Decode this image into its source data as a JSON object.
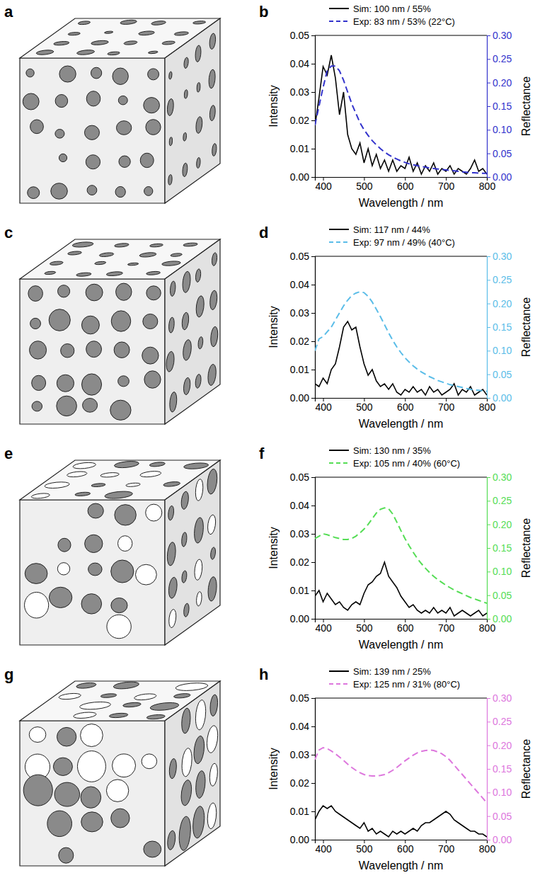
{
  "chart_data": [
    {
      "type": "line",
      "image_label": "a",
      "panel_label": "b",
      "x_label": "Wavelength / nm",
      "y_label": "Intensity",
      "y2_label": "Reflectance",
      "legend": "top",
      "x": [
        380,
        390,
        400,
        410,
        420,
        430,
        440,
        450,
        460,
        470,
        480,
        490,
        500,
        510,
        520,
        530,
        540,
        550,
        560,
        570,
        580,
        590,
        600,
        610,
        620,
        630,
        640,
        650,
        660,
        670,
        680,
        690,
        700,
        710,
        720,
        730,
        740,
        750,
        760,
        770,
        780,
        790,
        800
      ],
      "xlim": [
        380,
        800
      ],
      "xticks": [
        400,
        500,
        600,
        700,
        800
      ],
      "ylim": [
        0,
        0.05
      ],
      "yticks": [
        {
          "value": 0,
          "label": "0.00"
        },
        {
          "value": 0.01,
          "label": "0.01"
        },
        {
          "value": 0.02,
          "label": "0.02"
        },
        {
          "value": 0.03,
          "label": "0.03"
        },
        {
          "value": 0.04,
          "label": "0.04"
        },
        {
          "value": 0.05,
          "label": "0.05"
        }
      ],
      "y2lim": [
        0,
        0.3
      ],
      "y2ticks": [
        {
          "value": 0,
          "label": "0.00"
        },
        {
          "value": 0.05,
          "label": "0.05"
        },
        {
          "value": 0.1,
          "label": "0.10"
        },
        {
          "value": 0.15,
          "label": "0.15"
        },
        {
          "value": 0.2,
          "label": "0.20"
        },
        {
          "value": 0.25,
          "label": "0.25"
        },
        {
          "value": 0.3,
          "label": "0.30"
        }
      ],
      "series": [
        {
          "name": "Sim: 100 nm / 55%",
          "color": "#000000",
          "line_style": "solid",
          "values": [
            0.018,
            0.028,
            0.039,
            0.036,
            0.043,
            0.035,
            0.022,
            0.03,
            0.015,
            0.01,
            0.008,
            0.012,
            0.005,
            0.01,
            0.004,
            0.008,
            0.003,
            0.006,
            0.002,
            0.006,
            0.002,
            0.004,
            0.003,
            0.007,
            0.002,
            0.005,
            0.001,
            0.004,
            0.002,
            0.005,
            0.001,
            0.003,
            0.002,
            0.004,
            0.001,
            0.003,
            0.002,
            0.001,
            0.003,
            0.006,
            0.002,
            0.003,
            0.001
          ]
        },
        {
          "name": "Exp: 83 nm / 53% (22°C)",
          "color": "#3333cc",
          "line_style": "dashed",
          "axis": "y2",
          "values": [
            0.11,
            0.15,
            0.19,
            0.225,
            0.235,
            0.235,
            0.225,
            0.205,
            0.18,
            0.155,
            0.135,
            0.115,
            0.1,
            0.088,
            0.077,
            0.068,
            0.06,
            0.053,
            0.047,
            0.042,
            0.038,
            0.034,
            0.031,
            0.028,
            0.026,
            0.024,
            0.022,
            0.021,
            0.019,
            0.018,
            0.017,
            0.016,
            0.015,
            0.014,
            0.013,
            0.012,
            0.011,
            0.01,
            0.009,
            0.009,
            0.008,
            0.008,
            0.008
          ]
        }
      ]
    },
    {
      "type": "line",
      "image_label": "c",
      "panel_label": "d",
      "x_label": "Wavelength / nm",
      "y_label": "Intensity",
      "y2_label": "Reflectance",
      "legend": "top",
      "x": [
        380,
        390,
        400,
        410,
        420,
        430,
        440,
        450,
        460,
        470,
        480,
        490,
        500,
        510,
        520,
        530,
        540,
        550,
        560,
        570,
        580,
        590,
        600,
        610,
        620,
        630,
        640,
        650,
        660,
        670,
        680,
        690,
        700,
        710,
        720,
        730,
        740,
        750,
        760,
        770,
        780,
        790,
        800
      ],
      "xlim": [
        380,
        800
      ],
      "xticks": [
        400,
        500,
        600,
        700,
        800
      ],
      "ylim": [
        0,
        0.05
      ],
      "yticks": [
        {
          "value": 0,
          "label": "0.00"
        },
        {
          "value": 0.01,
          "label": "0.01"
        },
        {
          "value": 0.02,
          "label": "0.02"
        },
        {
          "value": 0.03,
          "label": "0.03"
        },
        {
          "value": 0.04,
          "label": "0.04"
        },
        {
          "value": 0.05,
          "label": "0.05"
        }
      ],
      "y2lim": [
        0,
        0.3
      ],
      "y2ticks": [
        {
          "value": 0,
          "label": "0.00"
        },
        {
          "value": 0.05,
          "label": "0.05"
        },
        {
          "value": 0.1,
          "label": "0.10"
        },
        {
          "value": 0.15,
          "label": "0.15"
        },
        {
          "value": 0.2,
          "label": "0.20"
        },
        {
          "value": 0.25,
          "label": "0.25"
        },
        {
          "value": 0.3,
          "label": "0.30"
        }
      ],
      "series": [
        {
          "name": "Sim: 117 nm / 44%",
          "color": "#000000",
          "line_style": "solid",
          "values": [
            0.005,
            0.004,
            0.007,
            0.005,
            0.01,
            0.012,
            0.018,
            0.025,
            0.027,
            0.024,
            0.025,
            0.018,
            0.012,
            0.008,
            0.01,
            0.006,
            0.004,
            0.005,
            0.003,
            0.005,
            0.002,
            0.001,
            0.003,
            0.002,
            0.004,
            0.002,
            0.003,
            0.001,
            0.004,
            0.002,
            0.003,
            0.001,
            0.002,
            0.003,
            0.005,
            0.001,
            0.003,
            0.002,
            0.004,
            0.001,
            0.002,
            0.003,
            0.001
          ]
        },
        {
          "name": "Exp: 97 nm / 49% (40°C)",
          "color": "#5bbde8",
          "line_style": "dashed",
          "axis": "y2",
          "values": [
            0.1,
            0.125,
            0.13,
            0.14,
            0.15,
            0.165,
            0.18,
            0.195,
            0.207,
            0.217,
            0.222,
            0.225,
            0.223,
            0.215,
            0.203,
            0.188,
            0.172,
            0.155,
            0.138,
            0.122,
            0.108,
            0.096,
            0.085,
            0.076,
            0.068,
            0.061,
            0.055,
            0.05,
            0.045,
            0.041,
            0.037,
            0.034,
            0.031,
            0.028,
            0.026,
            0.024,
            0.022,
            0.02,
            0.018,
            0.017,
            0.016,
            0.015,
            0.014
          ]
        }
      ]
    },
    {
      "type": "line",
      "image_label": "e",
      "panel_label": "f",
      "x_label": "Wavelength / nm",
      "y_label": "Intensity",
      "y2_label": "Reflectance",
      "legend": "top",
      "x": [
        380,
        390,
        400,
        410,
        420,
        430,
        440,
        450,
        460,
        470,
        480,
        490,
        500,
        510,
        520,
        530,
        540,
        550,
        560,
        570,
        580,
        590,
        600,
        610,
        620,
        630,
        640,
        650,
        660,
        670,
        680,
        690,
        700,
        710,
        720,
        730,
        740,
        750,
        760,
        770,
        780,
        790,
        800
      ],
      "xlim": [
        380,
        800
      ],
      "xticks": [
        400,
        500,
        600,
        700,
        800
      ],
      "ylim": [
        0,
        0.05
      ],
      "yticks": [
        {
          "value": 0,
          "label": "0.00"
        },
        {
          "value": 0.01,
          "label": "0.01"
        },
        {
          "value": 0.02,
          "label": "0.02"
        },
        {
          "value": 0.03,
          "label": "0.03"
        },
        {
          "value": 0.04,
          "label": "0.04"
        },
        {
          "value": 0.05,
          "label": "0.05"
        }
      ],
      "y2lim": [
        0,
        0.3
      ],
      "y2ticks": [
        {
          "value": 0,
          "label": "0.00"
        },
        {
          "value": 0.05,
          "label": "0.05"
        },
        {
          "value": 0.1,
          "label": "0.10"
        },
        {
          "value": 0.15,
          "label": "0.15"
        },
        {
          "value": 0.2,
          "label": "0.20"
        },
        {
          "value": 0.25,
          "label": "0.25"
        },
        {
          "value": 0.3,
          "label": "0.30"
        }
      ],
      "series": [
        {
          "name": "Sim: 130 nm / 35%",
          "color": "#000000",
          "line_style": "solid",
          "values": [
            0.008,
            0.01,
            0.006,
            0.009,
            0.007,
            0.005,
            0.006,
            0.004,
            0.003,
            0.005,
            0.006,
            0.005,
            0.009,
            0.012,
            0.013,
            0.015,
            0.016,
            0.02,
            0.015,
            0.013,
            0.011,
            0.008,
            0.006,
            0.004,
            0.005,
            0.003,
            0.002,
            0.003,
            0.002,
            0.004,
            0.002,
            0.003,
            0.002,
            0.004,
            0.001,
            0.002,
            0.003,
            0.002,
            0.001,
            0.002,
            0.003,
            0.001,
            0.002
          ]
        },
        {
          "name": "Exp: 105 nm / 40% (60°C)",
          "color": "#55dd55",
          "line_style": "dashed",
          "axis": "y2",
          "values": [
            0.17,
            0.175,
            0.18,
            0.178,
            0.175,
            0.172,
            0.17,
            0.168,
            0.168,
            0.17,
            0.175,
            0.182,
            0.19,
            0.2,
            0.212,
            0.224,
            0.232,
            0.235,
            0.233,
            0.222,
            0.205,
            0.187,
            0.17,
            0.155,
            0.141,
            0.128,
            0.117,
            0.107,
            0.098,
            0.09,
            0.083,
            0.077,
            0.071,
            0.066,
            0.061,
            0.057,
            0.053,
            0.049,
            0.045,
            0.042,
            0.039,
            0.036,
            0.033
          ]
        }
      ]
    },
    {
      "type": "line",
      "image_label": "g",
      "panel_label": "h",
      "x_label": "Wavelength / nm",
      "y_label": "Intensity",
      "y2_label": "Reflectance",
      "legend": "top",
      "x": [
        380,
        390,
        400,
        410,
        420,
        430,
        440,
        450,
        460,
        470,
        480,
        490,
        500,
        510,
        520,
        530,
        540,
        550,
        560,
        570,
        580,
        590,
        600,
        610,
        620,
        630,
        640,
        650,
        660,
        670,
        680,
        690,
        700,
        710,
        720,
        730,
        740,
        750,
        760,
        770,
        780,
        790,
        800
      ],
      "xlim": [
        380,
        800
      ],
      "xticks": [
        400,
        500,
        600,
        700,
        800
      ],
      "ylim": [
        0,
        0.05
      ],
      "yticks": [
        {
          "value": 0,
          "label": "0.00"
        },
        {
          "value": 0.01,
          "label": "0.01"
        },
        {
          "value": 0.02,
          "label": "0.02"
        },
        {
          "value": 0.03,
          "label": "0.03"
        },
        {
          "value": 0.04,
          "label": "0.04"
        },
        {
          "value": 0.05,
          "label": "0.05"
        }
      ],
      "y2lim": [
        0,
        0.3
      ],
      "y2ticks": [
        {
          "value": 0,
          "label": "0.00"
        },
        {
          "value": 0.05,
          "label": "0.05"
        },
        {
          "value": 0.1,
          "label": "0.10"
        },
        {
          "value": 0.15,
          "label": "0.15"
        },
        {
          "value": 0.2,
          "label": "0.20"
        },
        {
          "value": 0.25,
          "label": "0.25"
        },
        {
          "value": 0.3,
          "label": "0.30"
        }
      ],
      "series": [
        {
          "name": "Sim: 139 nm / 25%",
          "color": "#000000",
          "line_style": "solid",
          "values": [
            0.007,
            0.01,
            0.012,
            0.011,
            0.012,
            0.01,
            0.009,
            0.008,
            0.007,
            0.006,
            0.005,
            0.004,
            0.006,
            0.003,
            0.004,
            0.002,
            0.003,
            0.002,
            0.001,
            0.003,
            0.002,
            0.003,
            0.002,
            0.003,
            0.004,
            0.003,
            0.005,
            0.006,
            0.006,
            0.007,
            0.008,
            0.009,
            0.01,
            0.009,
            0.007,
            0.006,
            0.005,
            0.004,
            0.003,
            0.003,
            0.002,
            0.002,
            0.001
          ]
        },
        {
          "name": "Exp: 125 nm / 31% (80°C)",
          "color": "#dd77dd",
          "line_style": "dashed",
          "axis": "y2",
          "values": [
            0.17,
            0.19,
            0.195,
            0.193,
            0.188,
            0.182,
            0.175,
            0.168,
            0.16,
            0.153,
            0.147,
            0.142,
            0.138,
            0.136,
            0.135,
            0.135,
            0.136,
            0.138,
            0.142,
            0.147,
            0.153,
            0.16,
            0.167,
            0.173,
            0.179,
            0.184,
            0.187,
            0.189,
            0.19,
            0.189,
            0.186,
            0.182,
            0.176,
            0.168,
            0.158,
            0.148,
            0.138,
            0.128,
            0.118,
            0.108,
            0.098,
            0.088,
            0.078
          ]
        }
      ]
    }
  ]
}
